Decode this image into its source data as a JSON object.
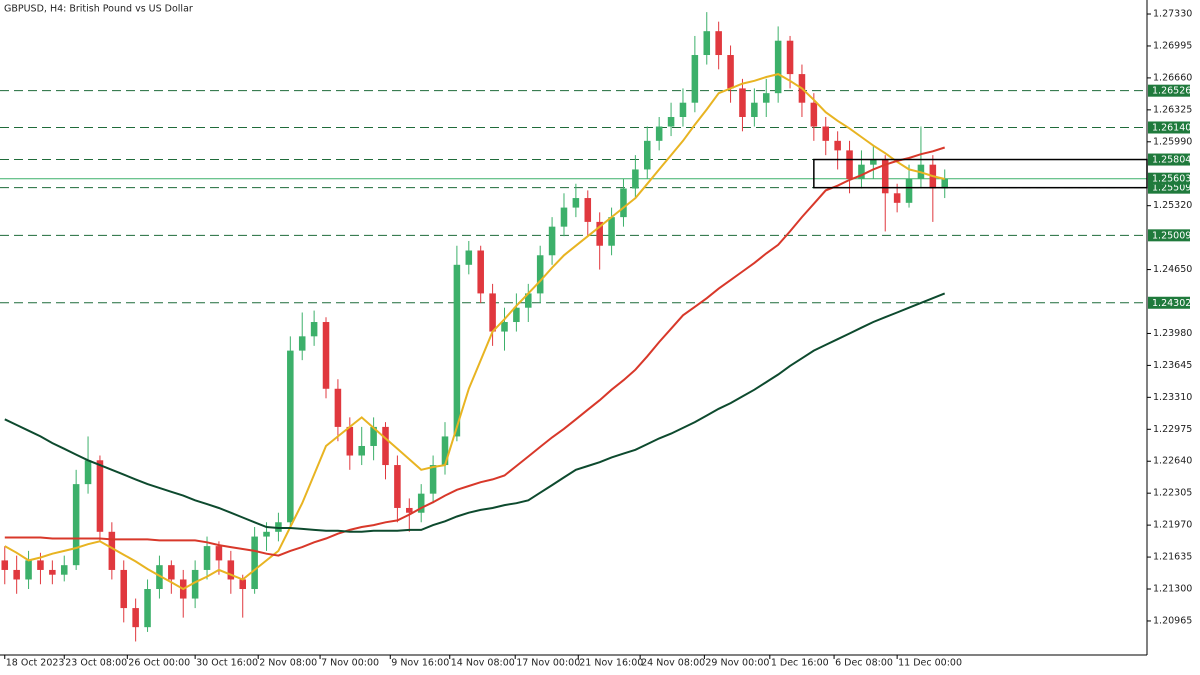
{
  "chart_data": {
    "type": "candlestick",
    "title": "GBPUSD, H4:  British Pound vs US Dollar",
    "up_color": "#3cb06a",
    "down_color": "#e0383e",
    "ylim": [
      1.20608,
      1.27477
    ],
    "xlim": [
      -0.4,
      96
    ],
    "yticks": [
      {
        "value": 1.2733,
        "label": "1.27330"
      },
      1.26995,
      {
        "value": 1.2666,
        "label": "1.26660"
      },
      1.26325,
      {
        "value": 1.2599,
        "label": "1.25990"
      },
      {
        "value": 1.2532,
        "label": "1.25320"
      },
      {
        "value": 1.2465,
        "label": "1.24650"
      },
      {
        "value": 1.2398,
        "label": "1.23980"
      },
      1.23645,
      {
        "value": 1.2331,
        "label": "1.23310"
      },
      1.22975,
      {
        "value": 1.2264,
        "label": "1.22640"
      },
      1.22305,
      {
        "value": 1.2197,
        "label": "1.21970"
      },
      1.21635,
      {
        "value": 1.213,
        "label": "1.21300"
      },
      1.20965
    ],
    "xticks": [
      {
        "value": 0,
        "label": "18 Oct 2023"
      },
      {
        "value": 5,
        "label": "23 Oct 08:00"
      },
      {
        "value": 10.3,
        "label": "26 Oct 00:00"
      },
      {
        "value": 16,
        "label": "30 Oct 16:00"
      },
      {
        "value": 21.3,
        "label": "2 Nov 08:00"
      },
      {
        "value": 26.5,
        "label": "7 Nov 00:00"
      },
      {
        "value": 32.4,
        "label": "9 Nov 16:00"
      },
      {
        "value": 37.4,
        "label": "14 Nov 08:00"
      },
      {
        "value": 42.9,
        "label": "17 Nov 00:00"
      },
      {
        "value": 48.2,
        "label": "21 Nov 16:00"
      },
      {
        "value": 53.4,
        "label": "24 Nov 08:00"
      },
      {
        "value": 58.8,
        "label": "29 Nov 00:00"
      },
      {
        "value": 64.3,
        "label": "1 Dec 16:00"
      },
      {
        "value": 69.7,
        "label": "6 Dec 08:00"
      },
      {
        "value": 75,
        "label": "11 Dec 00:00"
      }
    ],
    "open": [
      1.216,
      1.215,
      1.214,
      1.216,
      1.215,
      1.2145,
      1.2155,
      1.224,
      1.2265,
      1.219,
      1.215,
      1.211,
      1.209,
      1.213,
      1.2155,
      1.214,
      1.212,
      1.215,
      1.2175,
      1.216,
      1.214,
      1.213,
      1.2185,
      1.219,
      1.22,
      1.238,
      1.2395,
      1.241,
      1.234,
      1.23,
      1.227,
      1.228,
      1.23,
      1.226,
      1.2215,
      1.221,
      1.223,
      1.226,
      1.229,
      1.247,
      1.2485,
      1.244,
      1.24,
      1.241,
      1.2425,
      1.244,
      1.248,
      1.251,
      1.253,
      1.254,
      1.2515,
      1.249,
      1.252,
      1.255,
      1.257,
      1.26,
      1.2615,
      1.2625,
      1.264,
      1.269,
      1.2715,
      1.269,
      1.2655,
      1.2625,
      1.264,
      1.265,
      1.2705,
      1.267,
      1.264,
      1.2615,
      1.26,
      1.259,
      1.256,
      1.2575,
      1.258,
      1.2545,
      1.2535,
      1.256,
      1.2575,
      1.255
    ],
    "high": [
      1.2175,
      1.2165,
      1.217,
      1.2168,
      1.216,
      1.2165,
      1.2255,
      1.229,
      1.227,
      1.22,
      1.216,
      1.212,
      1.214,
      1.2165,
      1.216,
      1.215,
      1.216,
      1.2185,
      1.218,
      1.217,
      1.2145,
      1.2195,
      1.22,
      1.221,
      1.2395,
      1.242,
      1.2422,
      1.2415,
      1.235,
      1.231,
      1.23,
      1.231,
      1.2305,
      1.227,
      1.2225,
      1.224,
      1.227,
      1.2305,
      1.249,
      1.2495,
      1.249,
      1.245,
      1.2425,
      1.244,
      1.245,
      1.249,
      1.252,
      1.2545,
      1.2555,
      1.2548,
      1.2525,
      1.253,
      1.256,
      1.2585,
      1.2615,
      1.2625,
      1.264,
      1.2655,
      1.271,
      1.2735,
      1.2725,
      1.27,
      1.2665,
      1.2655,
      1.2665,
      1.272,
      1.271,
      1.268,
      1.265,
      1.2625,
      1.261,
      1.26,
      1.259,
      1.2595,
      1.2585,
      1.2555,
      1.2575,
      1.2615,
      1.2585,
      1.257
    ],
    "low": [
      1.2135,
      1.2125,
      1.213,
      1.2135,
      1.2135,
      1.2138,
      1.215,
      1.223,
      1.218,
      1.214,
      1.2095,
      1.2075,
      1.2085,
      1.212,
      1.2125,
      1.21,
      1.211,
      1.214,
      1.2145,
      1.2125,
      1.21,
      1.2125,
      1.217,
      1.218,
      1.2195,
      1.237,
      1.2385,
      1.233,
      1.2285,
      1.2255,
      1.226,
      1.2265,
      1.2245,
      1.22,
      1.219,
      1.22,
      1.222,
      1.225,
      1.2285,
      1.246,
      1.243,
      1.2385,
      1.238,
      1.24,
      1.241,
      1.243,
      1.247,
      1.25,
      1.252,
      1.25,
      1.2465,
      1.248,
      1.251,
      1.254,
      1.256,
      1.259,
      1.2605,
      1.2615,
      1.263,
      1.268,
      1.2675,
      1.264,
      1.261,
      1.2615,
      1.2625,
      1.264,
      1.2655,
      1.2625,
      1.26,
      1.2585,
      1.257,
      1.2545,
      1.255,
      1.256,
      1.2505,
      1.2525,
      1.253,
      1.255,
      1.2515,
      1.254
    ],
    "close": [
      1.215,
      1.214,
      1.216,
      1.215,
      1.2145,
      1.2155,
      1.224,
      1.2265,
      1.219,
      1.215,
      1.211,
      1.209,
      1.213,
      1.2155,
      1.214,
      1.212,
      1.215,
      1.2175,
      1.216,
      1.214,
      1.213,
      1.2185,
      1.219,
      1.22,
      1.238,
      1.2395,
      1.241,
      1.234,
      1.23,
      1.227,
      1.228,
      1.23,
      1.226,
      1.2215,
      1.221,
      1.223,
      1.226,
      1.229,
      1.247,
      1.2485,
      1.244,
      1.24,
      1.241,
      1.2425,
      1.244,
      1.248,
      1.251,
      1.253,
      1.254,
      1.2515,
      1.249,
      1.252,
      1.255,
      1.257,
      1.26,
      1.2615,
      1.2625,
      1.264,
      1.269,
      1.2715,
      1.269,
      1.2655,
      1.2625,
      1.264,
      1.265,
      1.2705,
      1.267,
      1.264,
      1.2615,
      1.26,
      1.259,
      1.256,
      1.2575,
      1.258,
      1.2545,
      1.2535,
      1.256,
      1.2575,
      1.255,
      1.256
    ],
    "lines": [
      {
        "color": "#e8b422",
        "values": [
          1.2175,
          1.2168,
          1.216,
          1.2163,
          1.2167,
          1.217,
          1.2173,
          1.2177,
          1.218,
          1.2173,
          1.2166,
          1.2159,
          1.2151,
          1.2144,
          1.2137,
          1.213,
          1.2137,
          1.2143,
          1.215,
          1.2145,
          1.214,
          1.215,
          1.216,
          1.217,
          1.2195,
          1.222,
          1.225,
          1.228,
          1.229,
          1.23,
          1.231,
          1.2299,
          1.2288,
          1.2277,
          1.2266,
          1.2255,
          1.2258,
          1.226,
          1.23,
          1.234,
          1.237,
          1.24,
          1.2413,
          1.2427,
          1.244,
          1.2453,
          1.2467,
          1.248,
          1.249,
          1.25,
          1.251,
          1.252,
          1.253,
          1.254,
          1.2555,
          1.257,
          1.2585,
          1.26,
          1.2617,
          1.2633,
          1.265,
          1.2655,
          1.266,
          1.2663,
          1.2667,
          1.267,
          1.2663,
          1.2655,
          1.2643,
          1.263,
          1.2621,
          1.2613,
          1.2604,
          1.2595,
          1.2587,
          1.2578,
          1.257,
          1.2567,
          1.2563,
          1.256
        ]
      },
      {
        "color": "#d8382a",
        "values": [
          1.2184,
          1.2184,
          1.2184,
          1.2184,
          1.2183,
          1.2183,
          1.2183,
          1.2183,
          1.2183,
          1.2182,
          1.2182,
          1.2182,
          1.2182,
          1.2181,
          1.2181,
          1.2181,
          1.2181,
          1.2179,
          1.2176,
          1.2174,
          1.2172,
          1.217,
          1.2167,
          1.2165,
          1.217,
          1.2174,
          1.2179,
          1.2183,
          1.2188,
          1.2192,
          1.2195,
          1.2197,
          1.22,
          1.2202,
          1.2208,
          1.2215,
          1.2221,
          1.2228,
          1.2234,
          1.2238,
          1.2242,
          1.2245,
          1.2249,
          1.2259,
          1.2269,
          1.2279,
          1.2289,
          1.2298,
          1.2308,
          1.2318,
          1.2328,
          1.2339,
          1.2349,
          1.236,
          1.2374,
          1.2389,
          1.2403,
          1.2417,
          1.2426,
          1.2435,
          1.2445,
          1.2454,
          1.2463,
          1.2472,
          1.2482,
          1.2491,
          1.2505,
          1.252,
          1.2534,
          1.2548,
          1.2553,
          1.2559,
          1.2564,
          1.257,
          1.2575,
          1.2579,
          1.2582,
          1.2586,
          1.2589,
          1.2593
        ]
      },
      {
        "color": "#0d4a2e",
        "values": [
          1.2308,
          1.2302,
          1.2296,
          1.229,
          1.2283,
          1.2277,
          1.2271,
          1.2265,
          1.226,
          1.2255,
          1.225,
          1.2245,
          1.224,
          1.2236,
          1.2232,
          1.2228,
          1.2223,
          1.2219,
          1.2215,
          1.221,
          1.2205,
          1.22,
          1.2195,
          1.2194,
          1.2194,
          1.2193,
          1.2192,
          1.2191,
          1.2191,
          1.219,
          1.219,
          1.2191,
          1.2191,
          1.2191,
          1.2192,
          1.2192,
          1.2197,
          1.2201,
          1.2206,
          1.221,
          1.2213,
          1.2215,
          1.2218,
          1.222,
          1.2223,
          1.2231,
          1.2239,
          1.2247,
          1.2255,
          1.2259,
          1.2263,
          1.2268,
          1.2272,
          1.2276,
          1.2282,
          1.2288,
          1.2293,
          1.2299,
          1.2305,
          1.2312,
          1.2319,
          1.2325,
          1.2332,
          1.2339,
          1.2347,
          1.2355,
          1.2364,
          1.2372,
          1.238,
          1.2386,
          1.2392,
          1.2398,
          1.2404,
          1.241,
          1.2415,
          1.242,
          1.2425,
          1.243,
          1.2435,
          1.244
        ]
      }
    ],
    "levels": [
      1.26526,
      1.2614,
      1.25804,
      1.25509,
      1.25009,
      1.24302
    ],
    "level_labels": [
      "1.26526",
      "1.26140",
      "1.25804",
      "1.25509",
      "1.25009",
      "1.24302"
    ],
    "level_color": "#1f6b3a",
    "label_color": "#1f7a3c",
    "current_price": 1.25603,
    "current_color": "#3cb06a",
    "box_start": 68
  }
}
